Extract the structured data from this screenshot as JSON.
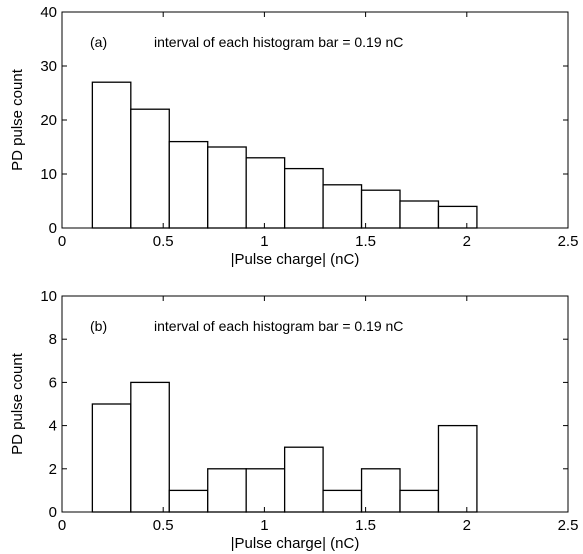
{
  "chart_data": [
    {
      "type": "bar",
      "panel_label": "(a)",
      "annotation": "interval of each histogram bar = 0.19 nC",
      "xlabel": "|Pulse charge| (nC)",
      "ylabel": "PD pulse count",
      "xlim": [
        0,
        2.5
      ],
      "ylim": [
        0,
        40
      ],
      "xticks": [
        "0",
        "0.5",
        "1",
        "1.5",
        "2",
        "2.5"
      ],
      "yticks": [
        "0",
        "10",
        "20",
        "30",
        "40"
      ],
      "bin_width": 0.19,
      "bin_starts": [
        0.15,
        0.34,
        0.53,
        0.72,
        0.91,
        1.1,
        1.29,
        1.48,
        1.67,
        1.86
      ],
      "values": [
        27,
        22,
        16,
        15,
        13,
        11,
        8,
        7,
        5,
        4
      ]
    },
    {
      "type": "bar",
      "panel_label": "(b)",
      "annotation": "interval of each histogram bar = 0.19 nC",
      "xlabel": "|Pulse charge| (nC)",
      "ylabel": "PD pulse count",
      "xlim": [
        0,
        2.5
      ],
      "ylim": [
        0,
        10
      ],
      "xticks": [
        "0",
        "0.5",
        "1",
        "1.5",
        "2",
        "2.5"
      ],
      "yticks": [
        "0",
        "2",
        "4",
        "6",
        "8",
        "10"
      ],
      "bin_width": 0.19,
      "bin_starts": [
        0.15,
        0.34,
        0.53,
        0.72,
        0.91,
        1.1,
        1.29,
        1.48,
        1.67,
        1.86
      ],
      "values": [
        5,
        6,
        1,
        2,
        2,
        3,
        1,
        2,
        1,
        4
      ]
    }
  ]
}
